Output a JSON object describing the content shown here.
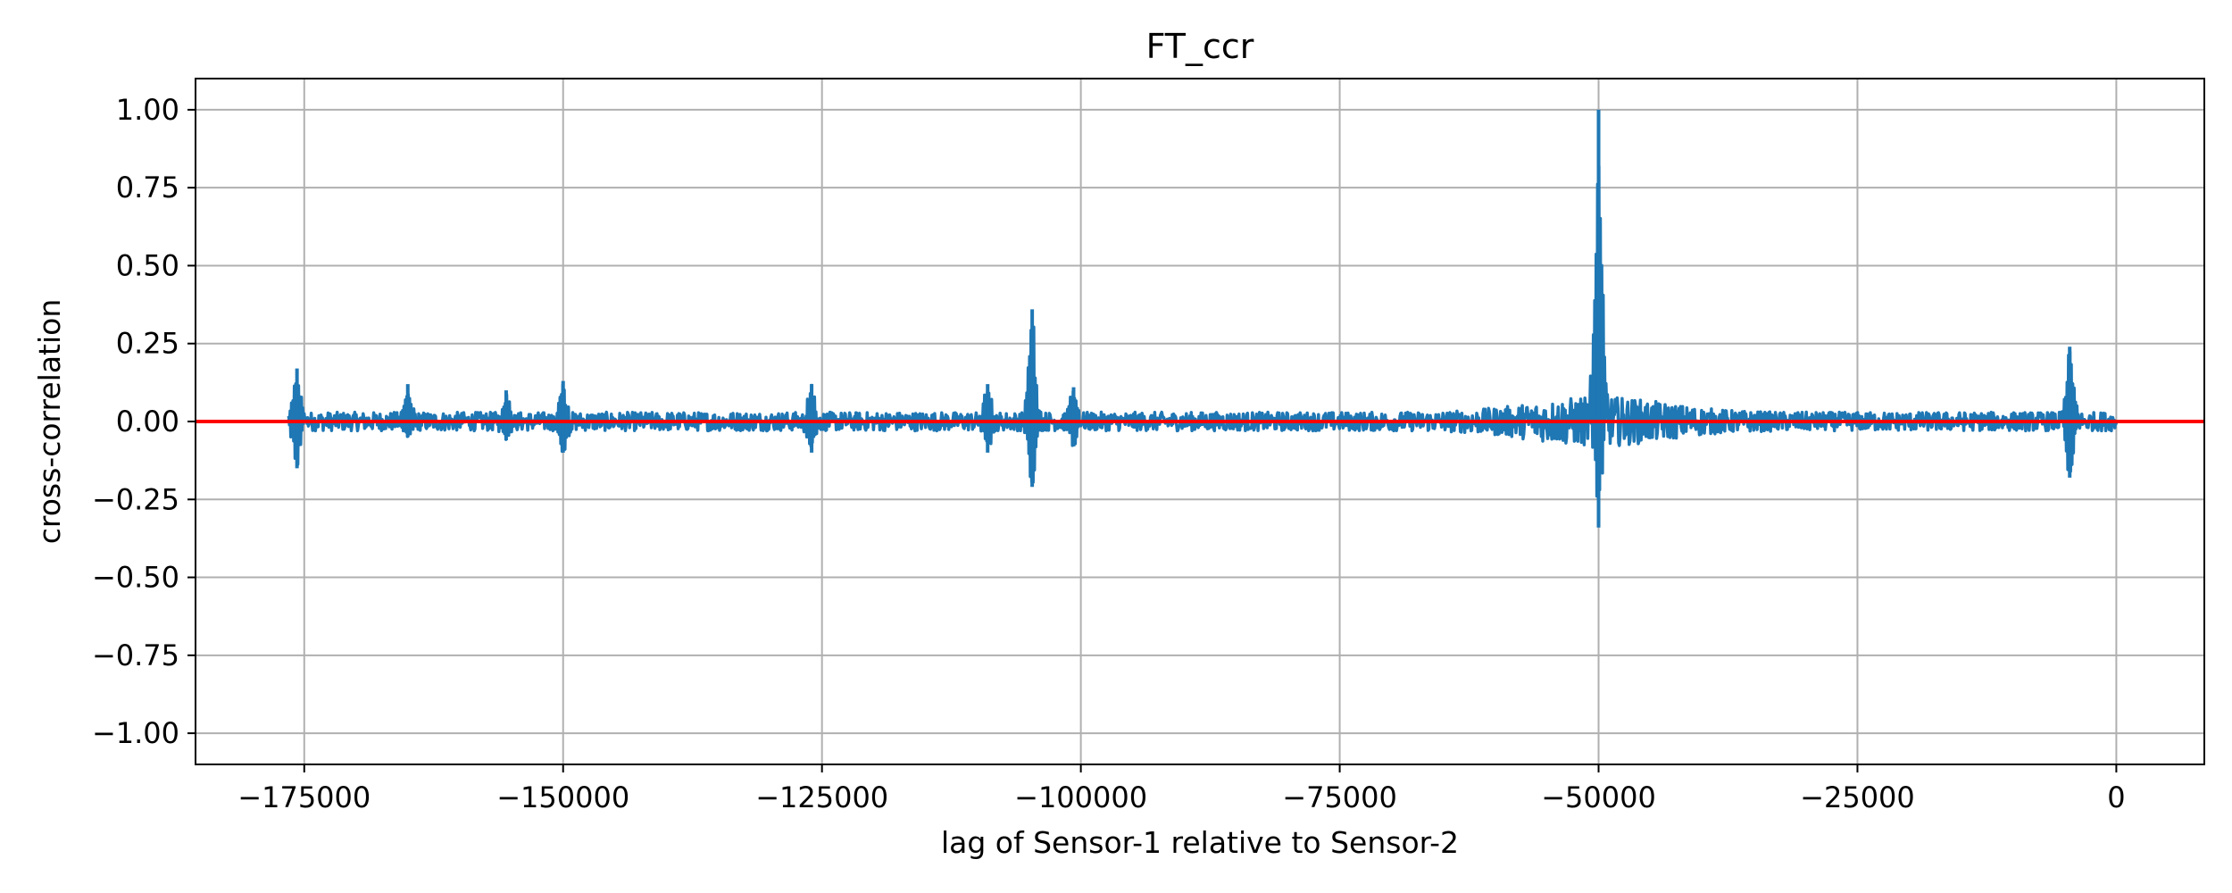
{
  "chart_data": {
    "type": "line",
    "title": "FT_ccr",
    "xlabel": "lag of Sensor-1 relative to Sensor-2",
    "ylabel": "cross-correlation",
    "xlim": [
      -185500,
      8500
    ],
    "ylim": [
      -1.1,
      1.1
    ],
    "x_ticks": [
      -175000,
      -150000,
      -125000,
      -100000,
      -75000,
      -50000,
      -25000,
      0
    ],
    "x_tick_labels": [
      "−175000",
      "−150000",
      "−125000",
      "−100000",
      "−75000",
      "−50000",
      "−25000",
      "0"
    ],
    "y_ticks": [
      1.0,
      0.75,
      0.5,
      0.25,
      0.0,
      -0.25,
      -0.5,
      -0.75,
      -1.0
    ],
    "y_tick_labels": [
      "1.00",
      "0.75",
      "0.50",
      "0.25",
      "0.00",
      "−0.25",
      "−0.50",
      "−0.75",
      "−1.00"
    ],
    "grid": true,
    "series": [
      {
        "color": "#1f77b4",
        "x_range": [
          -176500,
          0
        ],
        "baseline_amplitude": 0.03,
        "features": [
          {
            "x": -175700,
            "max": 0.17,
            "min": -0.15
          },
          {
            "x": -165000,
            "max": 0.12,
            "min": -0.05
          },
          {
            "x": -155500,
            "max": 0.1,
            "min": -0.06
          },
          {
            "x": -150000,
            "max": 0.13,
            "min": -0.1
          },
          {
            "x": -126000,
            "max": 0.12,
            "min": -0.1
          },
          {
            "x": -109000,
            "max": 0.12,
            "min": -0.1
          },
          {
            "x": -104700,
            "max": 0.36,
            "min": -0.21
          },
          {
            "x": -100700,
            "max": 0.11,
            "min": -0.08
          },
          {
            "x": -50000,
            "max": 1.0,
            "min": -0.34
          },
          {
            "x": -4500,
            "max": 0.24,
            "min": -0.18
          }
        ]
      },
      {
        "color": "#ff0000",
        "x": [
          -185500,
          8500
        ],
        "y": [
          0,
          0
        ]
      }
    ]
  }
}
